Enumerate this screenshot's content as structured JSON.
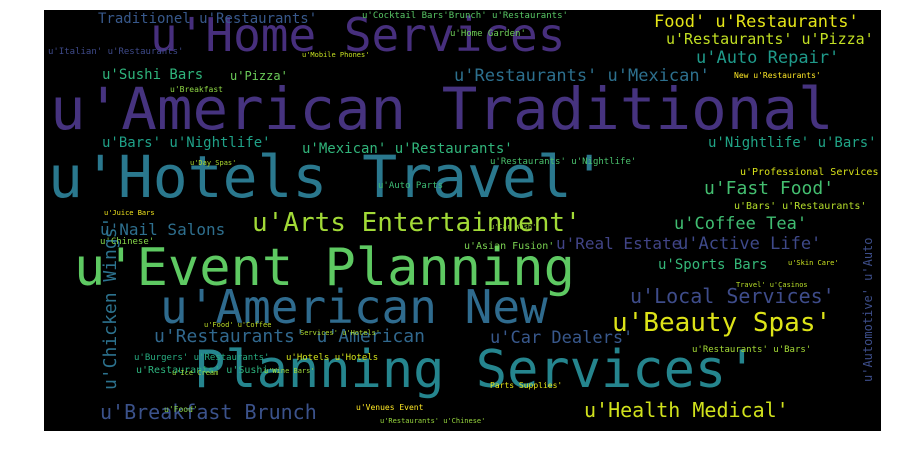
{
  "words": [
    {
      "text": "u'Home Services",
      "color": "#472f7d",
      "size": 46
    },
    {
      "text": "u'American Traditional",
      "color": "#46337f",
      "size": 58
    },
    {
      "text": "u'Hotels Travel'",
      "color": "#2a788e",
      "size": 58
    },
    {
      "text": "u'Event Planning",
      "color": "#5ec962",
      "size": 52
    },
    {
      "text": "u'American New",
      "color": "#2f6b8e",
      "size": 46
    },
    {
      "text": "Planning Services'",
      "color": "#25858e",
      "size": 52
    },
    {
      "text": "u'Arts Entertainment'",
      "color": "#a2da37",
      "size": 26
    },
    {
      "text": "u'Beauty Spas'",
      "color": "#dde318",
      "size": 26
    },
    {
      "text": "u'Breakfast Brunch",
      "color": "#3b528b",
      "size": 20
    },
    {
      "text": "u'Health Medical'",
      "color": "#d0e11c",
      "size": 20
    },
    {
      "text": "u'Local Services'",
      "color": "#3e4c8a",
      "size": 20
    },
    {
      "text": "u'Restaurants' u'American",
      "color": "#31688e",
      "size": 18
    },
    {
      "text": "u'Car Dealers'",
      "color": "#38588c",
      "size": 17
    },
    {
      "text": "u'Chicken Wings'",
      "color": "#2c728e",
      "size": 18
    },
    {
      "text": "u'Fast Food'",
      "color": "#44bf70",
      "size": 18
    },
    {
      "text": "u'Coffee Tea'",
      "color": "#40bd72",
      "size": 17
    },
    {
      "text": "u'Active Life'",
      "color": "#3e4989",
      "size": 17
    },
    {
      "text": "u'Real Estate'",
      "color": "#414487",
      "size": 16
    },
    {
      "text": "u'Nail Salons",
      "color": "#2e6f8e",
      "size": 16
    },
    {
      "text": "u'Auto Repair'",
      "color": "#1f9a8a",
      "size": 17
    },
    {
      "text": "u'Restaurants' u'Mexican'",
      "color": "#2d708e",
      "size": 17
    },
    {
      "text": "u'Sushi Bars",
      "color": "#2fb47c",
      "size": 14
    },
    {
      "text": "Food' u'Restaurants'",
      "color": "#e3e418",
      "size": 17
    },
    {
      "text": "u'Restaurants' u'Pizza'",
      "color": "#c2df23",
      "size": 15
    },
    {
      "text": "u'Bars' u'Nightlife'",
      "color": "#1fa188",
      "size": 14
    },
    {
      "text": "u'Mexican' u'Restaurants'",
      "color": "#31b57b",
      "size": 14
    },
    {
      "text": "u'Nightlife' u'Bars'",
      "color": "#20a486",
      "size": 14
    },
    {
      "text": "u'Sports Bars",
      "color": "#35b779",
      "size": 14
    },
    {
      "text": "Traditionel u'Restaurants'",
      "color": "#38598c",
      "size": 14
    },
    {
      "text": "u'Pizza'",
      "color": "#6ccd5a",
      "size": 12
    },
    {
      "text": "u'Professional Services",
      "color": "#d8e219",
      "size": 10
    },
    {
      "text": "u'Bars' u'Restaurants'",
      "color": "#b5de2b",
      "size": 10
    },
    {
      "text": "u'Auto Parts",
      "color": "#3dbc74",
      "size": 9
    },
    {
      "text": "u'Asian Fusion'",
      "color": "#7ad151",
      "size": 10
    },
    {
      "text": "u'Cocktail Bars'Brunch' u'Restaurants'",
      "color": "#58c765",
      "size": 9
    },
    {
      "text": "u'Restaurants' u'Nightlife'",
      "color": "#4ac16d",
      "size": 9
    },
    {
      "text": "u'Restaurants' u'Sushi",
      "color": "#2db27d",
      "size": 10
    },
    {
      "text": "u'Automotive' u'Auto",
      "color": "#3d4e8a",
      "size": 12
    },
    {
      "text": "u'Venues Event",
      "color": "#fde725",
      "size": 8
    },
    {
      "text": "u'Home Garden'",
      "color": "#6ece58",
      "size": 9
    },
    {
      "text": "u'Breakfast",
      "color": "#8ed645",
      "size": 8
    },
    {
      "text": "New u'Restaurants'",
      "color": "#fde725",
      "size": 8
    },
    {
      "text": "u'Chinese'",
      "color": "#86d549",
      "size": 9
    },
    {
      "text": "u'Burgers' u'Restaurants'",
      "color": "#27ad81",
      "size": 9
    },
    {
      "text": "u'Mobile Phones'",
      "color": "#c5e021",
      "size": 7
    },
    {
      "text": "u'Day Spas'",
      "color": "#addc30",
      "size": 7
    },
    {
      "text": "u'Car Wash'",
      "color": "#9bd93c",
      "size": 7
    },
    {
      "text": "u'Food' u'Coffee",
      "color": "#bddf26",
      "size": 7
    },
    {
      "text": "u'Restaurants' u'Chinese'",
      "color": "#98d83e",
      "size": 7
    },
    {
      "text": "Parts Supplies'",
      "color": "#e5e419",
      "size": 8
    },
    {
      "text": "Services' u'Hotels'",
      "color": "#b0dd2f",
      "size": 7
    },
    {
      "text": "u'Italian' u'Restaurants'",
      "color": "#3e4a89",
      "size": 9
    },
    {
      "text": "u'Food'",
      "color": "#8bd646",
      "size": 8
    },
    {
      "text": "u'Restaurants' u'Bars'",
      "color": "#a5db36",
      "size": 9
    },
    {
      "text": "u'Hotels u'Hotels",
      "color": "#d2e21b",
      "size": 9
    },
    {
      "text": "u'Ice Cream",
      "color": "#9dd93b",
      "size": 7
    },
    {
      "text": "u'Skin Care'",
      "color": "#c8e020",
      "size": 7
    },
    {
      "text": "Travel' u'Casinos",
      "color": "#b8de29",
      "size": 7
    },
    {
      "text": "u'Juice Bars",
      "color": "#f1e51d",
      "size": 7
    },
    {
      "text": "u'Wine Bars'",
      "color": "#9fda3a",
      "size": 7
    }
  ]
}
